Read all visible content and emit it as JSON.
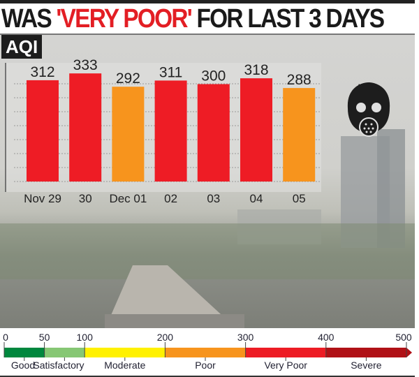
{
  "title": {
    "prefix": "WAS ",
    "highlight": "'VERY POOR'",
    "suffix": " FOR LAST 3 DAYS"
  },
  "colors": {
    "very_poor": "#ee1c25",
    "poor": "#f7941d",
    "title_highlight": "#e31e24"
  },
  "icon": "gas-mask-icon",
  "chart_data": {
    "type": "bar",
    "ylabel": "AQI",
    "categories": [
      "Nov 29",
      "30",
      "Dec 01",
      "02",
      "03",
      "04",
      "05"
    ],
    "values": [
      312,
      333,
      292,
      311,
      300,
      318,
      288
    ],
    "bar_colors": [
      "#ee1c25",
      "#ee1c25",
      "#f7941d",
      "#ee1c25",
      "#ee1c25",
      "#ee1c25",
      "#f7941d"
    ],
    "grid": true,
    "data_labels": true
  },
  "legend": {
    "ticks": [
      0,
      50,
      100,
      200,
      300,
      400,
      500
    ],
    "bands": [
      {
        "label": "Good",
        "from": 0,
        "to": 50,
        "color": "#00873e"
      },
      {
        "label": "Satisfactory",
        "from": 50,
        "to": 100,
        "color": "#86c774"
      },
      {
        "label": "Moderate",
        "from": 100,
        "to": 200,
        "color": "#fff100"
      },
      {
        "label": "Poor",
        "from": 200,
        "to": 300,
        "color": "#f7941d"
      },
      {
        "label": "Very Poor",
        "from": 300,
        "to": 400,
        "color": "#ed1c24"
      },
      {
        "label": "Severe",
        "from": 400,
        "to": 500,
        "color": "#b01116"
      }
    ]
  }
}
